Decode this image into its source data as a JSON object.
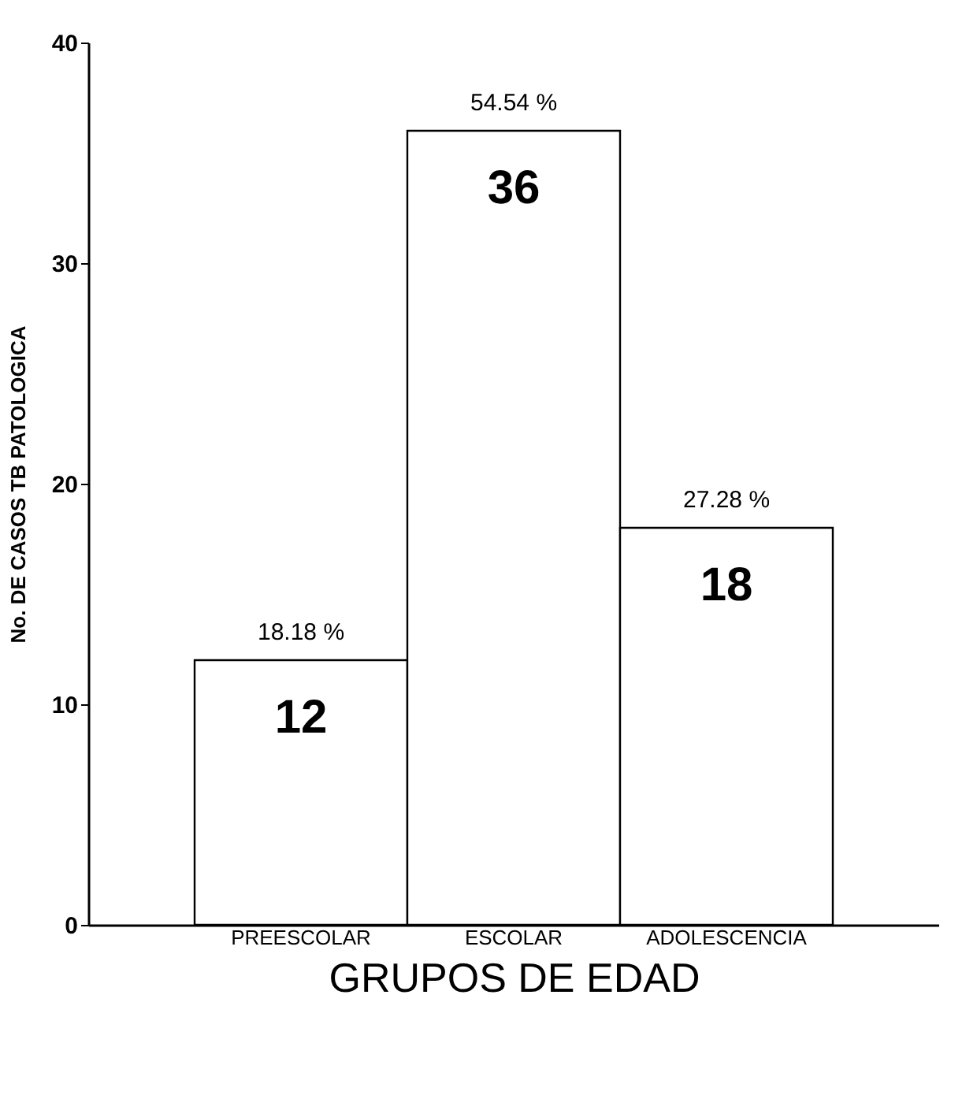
{
  "chart_data": {
    "type": "bar",
    "xlabel": "GRUPOS DE EDAD",
    "ylabel": "No. DE CASOS TB PATOLOGICA",
    "categories": [
      "PREESCOLAR",
      "ESCOLAR",
      "ADOLESCENCIA"
    ],
    "values": [
      12,
      36,
      18
    ],
    "color": "#ffffff",
    "ylim": [
      0,
      40
    ],
    "yticks": [
      0,
      10,
      20,
      30,
      40
    ],
    "grid": false,
    "data_labels": true,
    "annotations": [
      {
        "text": "18.18 %",
        "x": "PREESCOLAR",
        "y": 12
      },
      {
        "text": "54.54 %",
        "x": "ESCOLAR",
        "y": 36
      },
      {
        "text": "27.28 %",
        "x": "ADOLESCENCIA",
        "y": 18
      }
    ]
  }
}
